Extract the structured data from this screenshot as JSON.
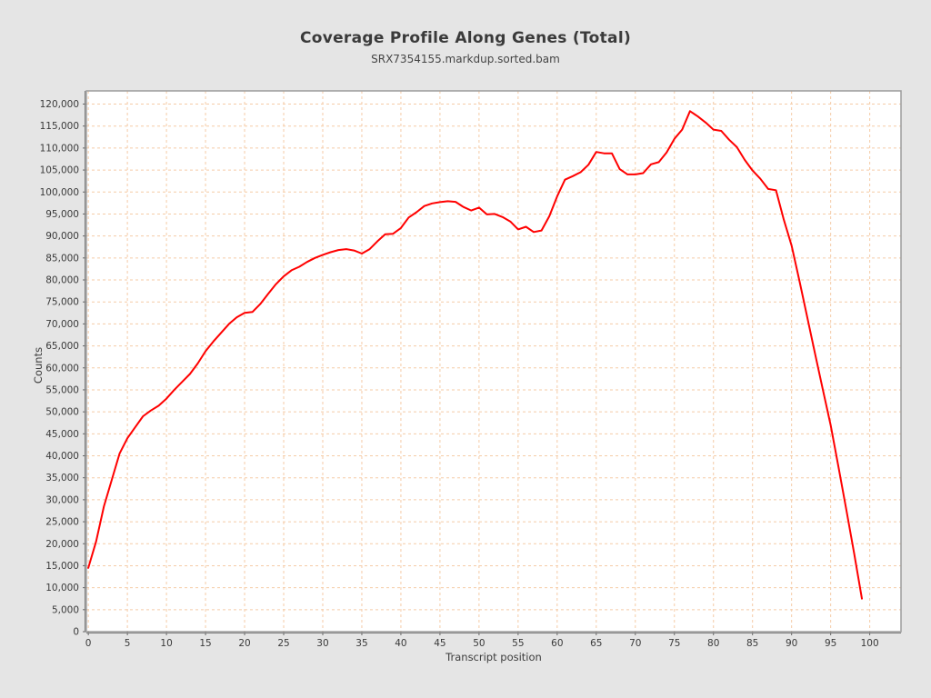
{
  "chart_data": {
    "type": "line",
    "title": "Coverage Profile Along Genes (Total)",
    "subtitle": "SRX7354155.markdup.sorted.bam",
    "xlabel": "Transcript position",
    "ylabel": "Counts",
    "series": [
      {
        "name": "SRX7354155.markdup.sorted.bam",
        "color": "#ff0000",
        "x_start": 0,
        "x_step": 1,
        "values": [
          14500,
          20500,
          28500,
          34500,
          40500,
          44000,
          46500,
          49000,
          50300,
          51400,
          53000,
          55000,
          56800,
          58600,
          61000,
          63800,
          66000,
          68000,
          70000,
          71500,
          72500,
          72700,
          74500,
          76800,
          79000,
          80800,
          82200,
          83000,
          84100,
          85000,
          85700,
          86300,
          86800,
          87000,
          86700,
          86000,
          87000,
          88800,
          90400,
          90500,
          91800,
          94200,
          95400,
          96800,
          97400,
          97700,
          97900,
          97750,
          96600,
          95800,
          96450,
          94900,
          95000,
          94300,
          93300,
          91500,
          92100,
          90900,
          91250,
          94500,
          99000,
          102800,
          103600,
          104500,
          106200,
          109100,
          108800,
          108800,
          105200,
          104000,
          104000,
          104300,
          106300,
          106800,
          109000,
          112100,
          114200,
          118400,
          117200,
          115800,
          114200,
          113900,
          111900,
          110200,
          107300,
          104900,
          103000,
          100700,
          100400,
          93700,
          87800,
          79800,
          71500,
          63200,
          55000,
          47000,
          37500,
          27800,
          17900,
          7500
        ]
      }
    ],
    "xlim": [
      -0.25,
      104
    ],
    "ylim": [
      0,
      123000
    ],
    "x_ticks": [
      0,
      5,
      10,
      15,
      20,
      25,
      30,
      35,
      40,
      45,
      50,
      55,
      60,
      65,
      70,
      75,
      80,
      85,
      90,
      95,
      100
    ],
    "y_tick_step": 5000,
    "y_tick_min": 0,
    "y_tick_max": 120000,
    "grid": "on",
    "legend_position": "none",
    "colors": {
      "background": "#e5e5e5",
      "plot_background": "#ffffff",
      "gridline": "#f5cba6",
      "plot_border": "#9b9b9b",
      "tick_mark": "#666666",
      "tick_text": "#3a3a3a",
      "line": "#ff0000"
    }
  }
}
